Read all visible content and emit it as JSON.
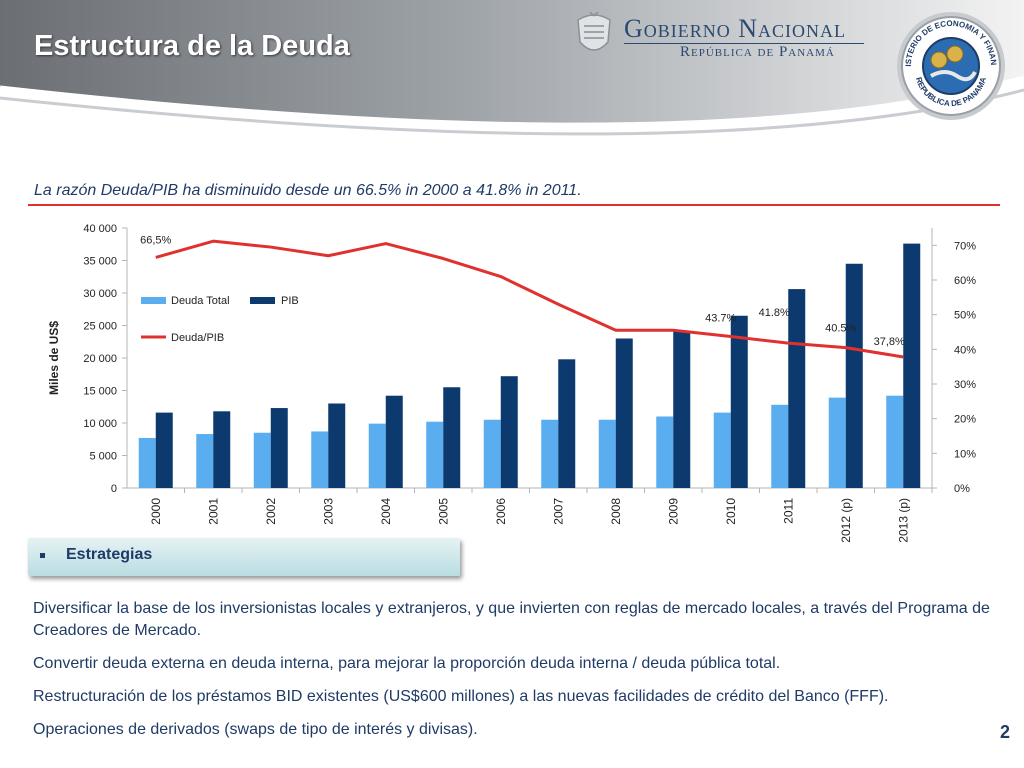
{
  "slide": {
    "title": "Estructura de la Deuda",
    "subtitle": "La razón Deuda/PIB ha disminuido desde un 66.5% in 2000 a 41.8% in 2011.",
    "page_number": "2"
  },
  "logos": {
    "gov_name": "Gobierno Nacional",
    "gov_sub": "República de Panamá",
    "seal_top": "MINISTERIO DE ECONOMIA Y FINANZAS",
    "seal_bottom": "REPUBLICA DE PANAMA"
  },
  "colors": {
    "deuda": "#5aaef0",
    "pib": "#0d3a6e",
    "ratio": "#e0312f",
    "text": "#1f3b66"
  },
  "chart_data": {
    "type": "bar",
    "ylabel": "Miles de US$",
    "ylim": [
      0,
      40000
    ],
    "y2lim": [
      0,
      0.75
    ],
    "yticks": [
      "0",
      "5 000",
      "10 000",
      "15 000",
      "20 000",
      "25 000",
      "30 000",
      "35 000",
      "40 000"
    ],
    "y2ticks": [
      "0%",
      "10%",
      "20%",
      "30%",
      "40%",
      "50%",
      "60%",
      "70%"
    ],
    "categories": [
      "2000",
      "2001",
      "2002",
      "2003",
      "2004",
      "2005",
      "2006",
      "2007",
      "2008",
      "2009",
      "2010",
      "2011",
      "2012 (p)",
      "2013 (p)"
    ],
    "legend": {
      "position": "top-left"
    },
    "series": [
      {
        "name": "Deuda Total",
        "type": "bar",
        "values": [
          7700,
          8300,
          8500,
          8700,
          9900,
          10200,
          10500,
          10500,
          10500,
          11000,
          11600,
          12800,
          13900,
          14200
        ]
      },
      {
        "name": "PIB",
        "type": "bar",
        "values": [
          11600,
          11800,
          12300,
          13000,
          14200,
          15500,
          17200,
          19800,
          23000,
          24200,
          26500,
          30600,
          34500,
          37600
        ]
      },
      {
        "name": "Deuda/PIB",
        "type": "line",
        "axis": "right",
        "values": [
          0.665,
          0.712,
          0.695,
          0.67,
          0.705,
          0.662,
          0.61,
          0.53,
          0.455,
          0.455,
          0.437,
          0.418,
          0.405,
          0.378
        ]
      }
    ],
    "annotations": [
      {
        "index": 0,
        "label": "66,5%"
      },
      {
        "index": 10,
        "label": "43.7%"
      },
      {
        "index": 11,
        "label": "41.8%"
      },
      {
        "index": 12,
        "label": "40.5%"
      },
      {
        "index": 13,
        "label": "37,8%"
      }
    ]
  },
  "strategies": {
    "label": "Estrategias",
    "items": [
      "Diversificar la base de los inversionistas locales  y extranjeros, y que invierten con reglas de mercado locales, a través del Programa de Creadores de Mercado.",
      "Convertir deuda externa en deuda interna, para mejorar la proporción deuda interna / deuda pública total.",
      "Restructuración de los préstamos BID existentes (US$600 millones) a las nuevas facilidades de crédito del Banco (FFF).",
      "Operaciones de derivados (swaps de tipo de interés y divisas)."
    ]
  }
}
